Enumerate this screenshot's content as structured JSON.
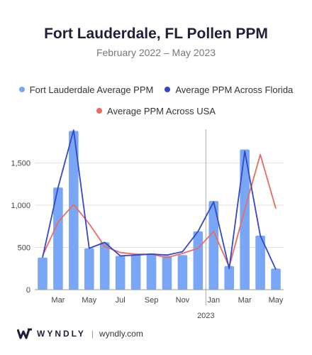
{
  "title": "Fort Lauderdale, FL Pollen PPM",
  "subtitle": "February 2022 – May 2023",
  "footer": {
    "brand": "WYNDLY",
    "separator": "|",
    "url": "wyndly.com"
  },
  "colors": {
    "bar": "#7aa7f5",
    "florida": "#3446c9",
    "usa": "#ea6b60",
    "grid": "#e3e3e3",
    "divider": "#aaaaaa"
  },
  "chart_data": {
    "type": "bar",
    "categories": [
      "Feb 2022",
      "Mar 2022",
      "Apr 2022",
      "May 2022",
      "Jun 2022",
      "Jul 2022",
      "Aug 2022",
      "Sep 2022",
      "Oct 2022",
      "Nov 2022",
      "Dec 2022",
      "Jan 2023",
      "Feb 2023",
      "Mar 2023",
      "Apr 2023",
      "May 2023"
    ],
    "x_tick_labels": [
      "Mar",
      "May",
      "Jul",
      "Sep",
      "Nov",
      "Jan",
      "Mar",
      "May"
    ],
    "x_tick_categories": [
      "Mar 2022",
      "May 2022",
      "Jul 2022",
      "Sep 2022",
      "Nov 2022",
      "Jan 2023",
      "Mar 2023",
      "May 2023"
    ],
    "year_label": "2023",
    "year_divider_category": "Jan 2023",
    "y_ticks": [
      0,
      500,
      1000,
      1500
    ],
    "y_tick_labels": [
      "0",
      "500",
      "1,000",
      "1,500"
    ],
    "ylim": [
      0,
      1900
    ],
    "grid": true,
    "legend_position": "top",
    "series": [
      {
        "name": "Fort Lauderdale Average PPM",
        "type": "bar",
        "values": [
          380,
          1210,
          1880,
          490,
          560,
          400,
          410,
          430,
          400,
          410,
          690,
          1050,
          280,
          1660,
          640,
          250
        ]
      },
      {
        "name": "Average PPM Across Florida",
        "type": "line",
        "values": [
          380,
          1210,
          1890,
          490,
          560,
          400,
          410,
          420,
          410,
          450,
          690,
          1040,
          250,
          1640,
          640,
          240
        ]
      },
      {
        "name": "Average PPM Across USA",
        "type": "line",
        "values": [
          400,
          800,
          1010,
          780,
          510,
          440,
          420,
          420,
          380,
          430,
          490,
          690,
          270,
          950,
          1600,
          960
        ]
      }
    ]
  }
}
